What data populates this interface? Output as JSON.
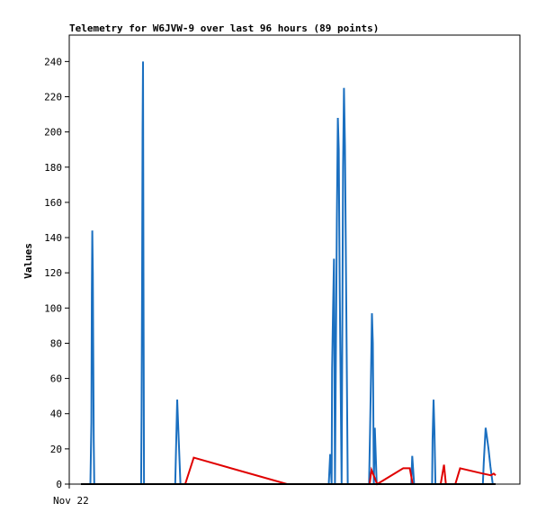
{
  "chart_data": {
    "type": "line",
    "title": "Telemetry for W6JVW-9 over last 96 hours (89 points)",
    "xlabel": "",
    "ylabel": "Values",
    "x_tick_labels": [
      "Nov 22"
    ],
    "xlim": [
      0,
      96
    ],
    "ylim": [
      0,
      255
    ],
    "y_ticks": [
      0,
      20,
      40,
      60,
      80,
      100,
      120,
      140,
      160,
      180,
      200,
      220,
      240
    ],
    "grid": false,
    "legend": "none",
    "colors": {
      "blue": "#1a6fc0",
      "red": "#e00000",
      "black": "#000000"
    },
    "series": [
      {
        "color": "#1a6fc0",
        "points": [
          [
            0,
            0
          ],
          [
            1.5,
            0
          ],
          [
            1.7,
            0
          ],
          [
            2.0,
            0
          ],
          [
            2.2,
            35
          ],
          [
            2.3,
            108
          ],
          [
            2.4,
            144
          ],
          [
            2.5,
            120
          ],
          [
            2.6,
            72
          ],
          [
            2.7,
            25
          ],
          [
            2.8,
            0
          ],
          [
            12.7,
            0
          ],
          [
            12.8,
            40
          ],
          [
            12.9,
            118
          ],
          [
            13.0,
            200
          ],
          [
            13.1,
            240
          ],
          [
            13.2,
            120
          ],
          [
            13.3,
            0
          ],
          [
            19.9,
            0
          ],
          [
            20.3,
            48
          ],
          [
            21.0,
            0
          ],
          [
            52.3,
            0
          ],
          [
            52.6,
            17
          ],
          [
            52.9,
            0
          ],
          [
            53.0,
            65
          ],
          [
            53.2,
            100
          ],
          [
            53.4,
            128
          ],
          [
            53.6,
            0
          ],
          [
            54.0,
            150
          ],
          [
            54.2,
            208
          ],
          [
            54.4,
            190
          ],
          [
            54.6,
            110
          ],
          [
            55.0,
            0
          ],
          [
            55.3,
            180
          ],
          [
            55.5,
            225
          ],
          [
            55.7,
            192
          ],
          [
            56.0,
            100
          ],
          [
            56.3,
            0
          ],
          [
            60.8,
            0
          ],
          [
            61.0,
            30
          ],
          [
            61.2,
            60
          ],
          [
            61.4,
            97
          ],
          [
            61.6,
            80
          ],
          [
            61.8,
            0
          ],
          [
            62.0,
            32
          ],
          [
            62.4,
            0
          ],
          [
            69.7,
            0
          ],
          [
            69.9,
            16
          ],
          [
            70.3,
            0
          ],
          [
            74.1,
            0
          ],
          [
            74.2,
            25
          ],
          [
            74.4,
            48
          ],
          [
            74.6,
            30
          ],
          [
            74.8,
            0
          ],
          [
            84.8,
            0
          ],
          [
            85.0,
            12
          ],
          [
            85.4,
            32
          ],
          [
            85.6,
            28
          ],
          [
            86.0,
            20
          ],
          [
            86.4,
            10
          ],
          [
            86.9,
            0
          ]
        ]
      },
      {
        "color": "#e00000",
        "points": [
          [
            22.0,
            0
          ],
          [
            23.8,
            15
          ],
          [
            43.5,
            0
          ],
          [
            60.9,
            0
          ],
          [
            61.3,
            8
          ],
          [
            62.5,
            0
          ],
          [
            68.0,
            9
          ],
          [
            69.4,
            9
          ],
          [
            70.0,
            0
          ],
          [
            75.9,
            0
          ],
          [
            76.6,
            11
          ],
          [
            77.0,
            0
          ],
          [
            79.0,
            0
          ],
          [
            80.0,
            9
          ],
          [
            84.8,
            6
          ],
          [
            86.5,
            5
          ],
          [
            87.1,
            6
          ],
          [
            87.5,
            5
          ]
        ]
      },
      {
        "color": "#000000",
        "points": [
          [
            0,
            0
          ],
          [
            87.5,
            0
          ]
        ]
      }
    ]
  }
}
